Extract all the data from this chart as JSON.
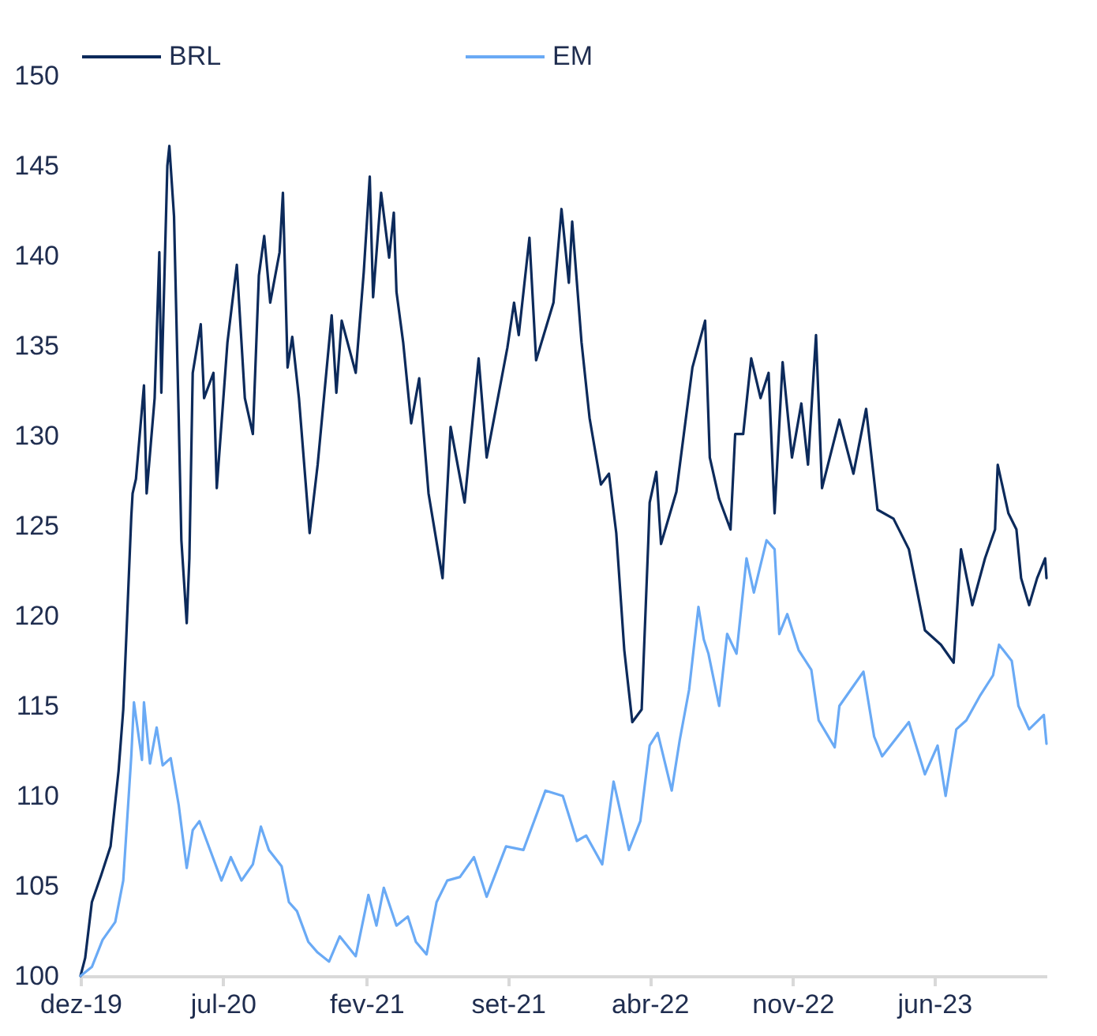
{
  "chart_data": {
    "type": "line",
    "xlim": [
      "2019-12-01",
      "2023-11-16"
    ],
    "ylim": [
      100,
      150
    ],
    "yticks": [
      100,
      105,
      110,
      115,
      120,
      125,
      130,
      135,
      140,
      145,
      150
    ],
    "xticks": [
      {
        "value": "2019-12-01",
        "label": "dez-19"
      },
      {
        "value": "2020-07-01",
        "label": "jul-20"
      },
      {
        "value": "2021-02-01",
        "label": "fev-21"
      },
      {
        "value": "2021-09-01",
        "label": "set-21"
      },
      {
        "value": "2022-04-01",
        "label": "abr-22"
      },
      {
        "value": "2022-11-01",
        "label": "nov-22"
      },
      {
        "value": "2023-06-01",
        "label": "jun-23"
      }
    ],
    "grid": false,
    "legend": "top",
    "series": [
      {
        "name": "BRL",
        "color": "#0c2a5b",
        "x": [
          "2019-12-01",
          "2019-12-08",
          "2019-12-18",
          "2020-01-01",
          "2020-01-15",
          "2020-01-27",
          "2020-02-03",
          "2020-02-08",
          "2020-02-15",
          "2020-02-17",
          "2020-02-22",
          "2020-03-05",
          "2020-03-09",
          "2020-03-21",
          "2020-03-28",
          "2020-03-31",
          "2020-04-09",
          "2020-04-12",
          "2020-04-19",
          "2020-04-26",
          "2020-04-30",
          "2020-05-08",
          "2020-05-12",
          "2020-05-17",
          "2020-05-29",
          "2020-06-03",
          "2020-06-17",
          "2020-06-22",
          "2020-07-08",
          "2020-07-22",
          "2020-08-03",
          "2020-08-15",
          "2020-08-24",
          "2020-09-01",
          "2020-09-10",
          "2020-09-24",
          "2020-09-29",
          "2020-10-06",
          "2020-10-13",
          "2020-10-23",
          "2020-11-08",
          "2020-11-20",
          "2020-12-11",
          "2020-12-18",
          "2020-12-26",
          "2021-01-16",
          "2021-01-28",
          "2021-02-06",
          "2021-02-11",
          "2021-02-23",
          "2021-03-07",
          "2021-03-14",
          "2021-03-18",
          "2021-03-28",
          "2021-04-09",
          "2021-04-21",
          "2021-05-05",
          "2021-05-26",
          "2021-06-07",
          "2021-06-28",
          "2021-07-19",
          "2021-07-31",
          "2021-08-31",
          "2021-09-10",
          "2021-09-17",
          "2021-10-03",
          "2021-10-13",
          "2021-11-08",
          "2021-11-20",
          "2021-12-01",
          "2021-12-06",
          "2021-12-20",
          "2022-01-01",
          "2022-01-18",
          "2022-01-30",
          "2022-02-10",
          "2022-02-22",
          "2022-03-06",
          "2022-03-20",
          "2022-03-30",
          "2022-04-01",
          "2022-04-11",
          "2022-04-18",
          "2022-05-11",
          "2022-06-04",
          "2022-06-23",
          "2022-06-30",
          "2022-07-14",
          "2022-07-31",
          "2022-08-07",
          "2022-08-19",
          "2022-08-31",
          "2022-09-14",
          "2022-09-26",
          "2022-10-05",
          "2022-10-17",
          "2022-10-31",
          "2022-11-14",
          "2022-11-24",
          "2022-12-06",
          "2022-12-15",
          "2023-01-10",
          "2023-01-31",
          "2023-02-19",
          "2023-03-08",
          "2023-04-01",
          "2023-04-24",
          "2023-05-18",
          "2023-06-11",
          "2023-06-30",
          "2023-07-11",
          "2023-07-28",
          "2023-08-16",
          "2023-08-31",
          "2023-09-04",
          "2023-09-20",
          "2023-10-02",
          "2023-10-09",
          "2023-10-21",
          "2023-11-02",
          "2023-11-14",
          "2023-11-16"
        ],
        "values": [
          100,
          101,
          104.1,
          105.6,
          107.2,
          111.4,
          114.8,
          119.2,
          125.5,
          126.8,
          127.6,
          132.8,
          126.8,
          132.1,
          140.2,
          132.4,
          145,
          146.1,
          142.2,
          131,
          124.2,
          119.6,
          123.2,
          133.5,
          136.2,
          132.1,
          133.5,
          127.1,
          135.2,
          139.5,
          132.1,
          130.1,
          138.9,
          141.1,
          137.4,
          140.2,
          143.5,
          133.8,
          135.5,
          132.1,
          124.6,
          128.4,
          136.7,
          132.4,
          136.4,
          133.5,
          139.1,
          144.4,
          137.7,
          143.5,
          139.9,
          142.4,
          138,
          135.2,
          130.7,
          133.2,
          126.8,
          122.1,
          130.5,
          126.3,
          134.3,
          128.8,
          134.9,
          137.4,
          135.6,
          141,
          134.2,
          137.4,
          142.6,
          138.5,
          141.9,
          135.2,
          131,
          127.3,
          127.9,
          124.6,
          118.1,
          114.1,
          114.8,
          124.2,
          126.3,
          128,
          124,
          126.9,
          133.8,
          136.4,
          128.8,
          126.5,
          124.8,
          130.1,
          130.1,
          134.3,
          132.1,
          133.5,
          125.7,
          134.1,
          128.8,
          131.8,
          128.4,
          135.6,
          127.1,
          130.9,
          127.9,
          131.5,
          125.9,
          125.4,
          123.7,
          119.2,
          118.4,
          117.4,
          123.7,
          120.6,
          123.2,
          124.8,
          128.4,
          125.7,
          124.8,
          122.1,
          120.6,
          122.1,
          123.2,
          122.1
        ]
      },
      {
        "name": "EM",
        "color": "#6aaaf5",
        "x": [
          "2019-12-01",
          "2019-12-18",
          "2020-01-03",
          "2020-01-22",
          "2020-02-03",
          "2020-02-15",
          "2020-02-19",
          "2020-03-02",
          "2020-03-05",
          "2020-03-14",
          "2020-03-24",
          "2020-04-02",
          "2020-04-14",
          "2020-04-26",
          "2020-05-08",
          "2020-05-17",
          "2020-05-27",
          "2020-06-07",
          "2020-06-29",
          "2020-07-13",
          "2020-07-29",
          "2020-08-15",
          "2020-08-27",
          "2020-09-08",
          "2020-09-27",
          "2020-10-08",
          "2020-10-20",
          "2020-11-06",
          "2020-11-20",
          "2020-12-07",
          "2020-12-23",
          "2021-01-16",
          "2021-02-04",
          "2021-02-16",
          "2021-02-27",
          "2021-03-18",
          "2021-04-04",
          "2021-04-16",
          "2021-05-02",
          "2021-05-17",
          "2021-06-02",
          "2021-06-21",
          "2021-07-12",
          "2021-07-31",
          "2021-08-29",
          "2021-09-24",
          "2021-10-27",
          "2021-11-22",
          "2021-12-13",
          "2021-12-27",
          "2022-01-20",
          "2022-02-06",
          "2022-03-01",
          "2022-03-18",
          "2022-04-01",
          "2022-04-13",
          "2022-05-04",
          "2022-05-16",
          "2022-05-30",
          "2022-06-13",
          "2022-06-21",
          "2022-06-28",
          "2022-07-14",
          "2022-07-26",
          "2022-08-09",
          "2022-08-24",
          "2022-09-04",
          "2022-09-23",
          "2022-10-05",
          "2022-10-12",
          "2022-10-24",
          "2022-11-10",
          "2022-11-29",
          "2022-12-10",
          "2023-01-03",
          "2023-01-10",
          "2023-01-27",
          "2023-02-15",
          "2023-03-03",
          "2023-03-15",
          "2023-04-03",
          "2023-04-24",
          "2023-05-18",
          "2023-06-06",
          "2023-06-18",
          "2023-07-04",
          "2023-07-19",
          "2023-08-09",
          "2023-08-28",
          "2023-09-06",
          "2023-09-25",
          "2023-10-05",
          "2023-10-21",
          "2023-11-12",
          "2023-11-16"
        ],
        "values": [
          100,
          100.5,
          102,
          103,
          105.3,
          112.2,
          115.2,
          112,
          115.2,
          111.8,
          113.8,
          111.7,
          112.1,
          109.5,
          106,
          108.1,
          108.6,
          107.5,
          105.3,
          106.6,
          105.3,
          106.2,
          108.3,
          107,
          106.1,
          104.1,
          103.6,
          101.9,
          101.3,
          100.8,
          102.2,
          101.1,
          104.5,
          102.8,
          104.9,
          102.8,
          103.3,
          101.9,
          101.2,
          104.1,
          105.3,
          105.5,
          106.6,
          104.4,
          107.2,
          107,
          110.3,
          110,
          107.5,
          107.8,
          106.2,
          110.8,
          107,
          108.6,
          112.8,
          113.5,
          110.3,
          113.1,
          115.9,
          120.5,
          118.7,
          117.9,
          115,
          119,
          117.9,
          123.2,
          121.3,
          124.2,
          123.7,
          119,
          120.1,
          118.1,
          117,
          114.2,
          112.7,
          115,
          115.9,
          116.9,
          113.3,
          112.2,
          113.1,
          114.1,
          111.2,
          112.8,
          110,
          113.7,
          114.2,
          115.6,
          116.7,
          118.4,
          117.5,
          115,
          113.7,
          114.5,
          112.9
        ]
      }
    ]
  }
}
